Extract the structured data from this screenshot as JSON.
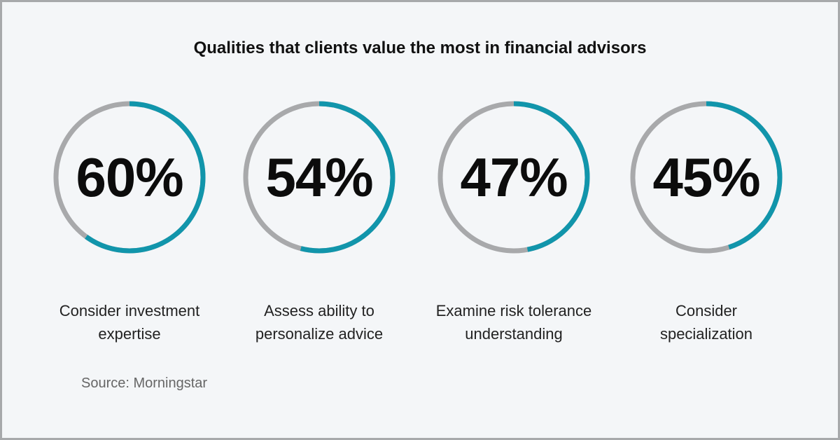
{
  "title": "Qualities that clients value the most in financial advisors",
  "source": "Source: Morningstar",
  "colors": {
    "ring_fill": "#1195ab",
    "ring_track": "#a8a9ab",
    "background": "#f4f6f8",
    "border": "#a7a9ab"
  },
  "chart_data": {
    "type": "donut-stats",
    "title": "Qualities that clients value the most in financial advisors",
    "items": [
      {
        "value": 60,
        "value_label": "60%",
        "label_line1": "Consider investment",
        "label_line2": "expertise"
      },
      {
        "value": 54,
        "value_label": "54%",
        "label_line1": "Assess ability to",
        "label_line2": "personalize advice"
      },
      {
        "value": 47,
        "value_label": "47%",
        "label_line1": "Examine risk tolerance",
        "label_line2": "understanding"
      },
      {
        "value": 45,
        "value_label": "45%",
        "label_line1": "Consider",
        "label_line2": "specialization"
      }
    ]
  }
}
